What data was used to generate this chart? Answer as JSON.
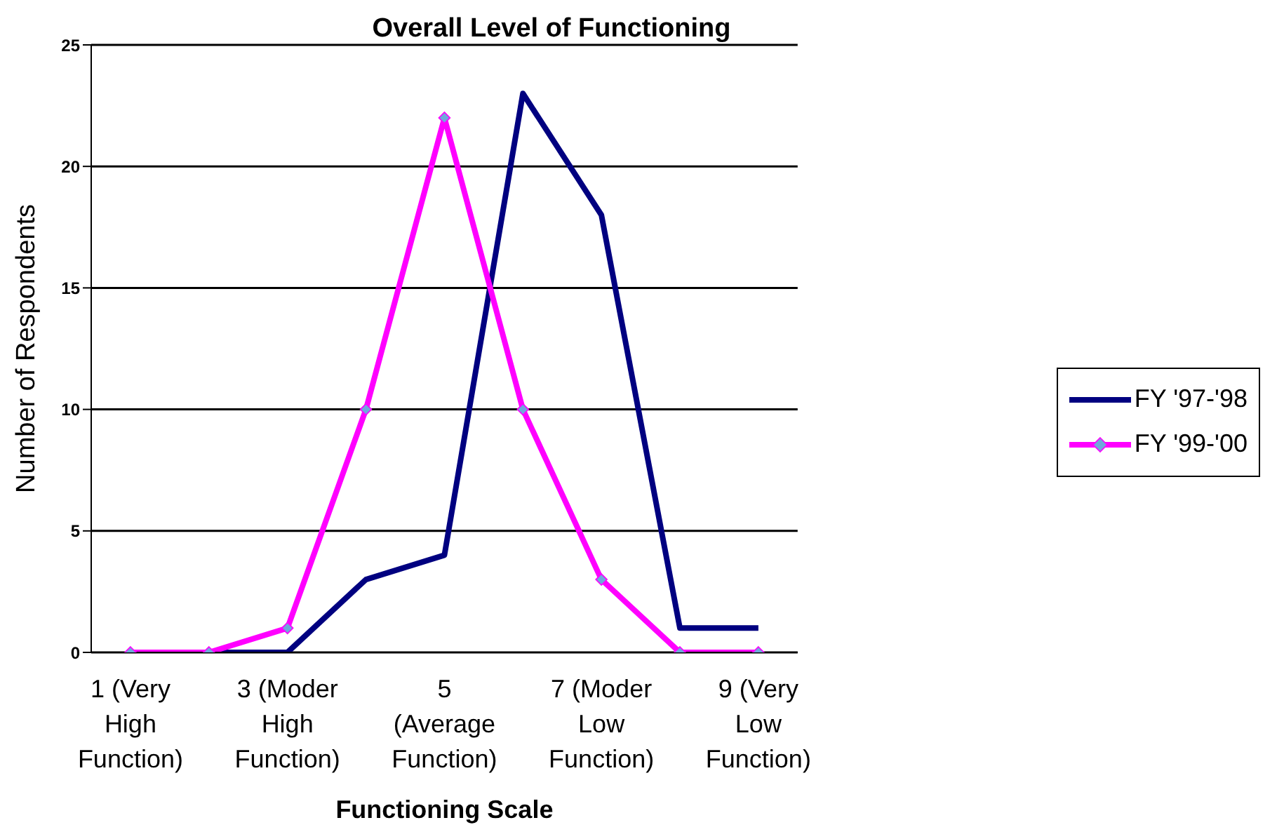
{
  "chart_data": {
    "type": "line",
    "title": "Overall Level of Functioning",
    "xlabel": "Functioning Scale",
    "ylabel": "Number of Respondents",
    "categories": [
      "1 (Very High Function)",
      null,
      "3 (Moder High Function)",
      null,
      "5 (Average Function)",
      null,
      "7 (Moder Low Function)",
      null,
      "9 (Very Low Function)"
    ],
    "series": [
      {
        "name": "FY '97-'98",
        "color": "#000080",
        "marker": "none",
        "values": [
          0,
          0,
          0,
          3,
          4,
          23,
          18,
          1,
          1
        ]
      },
      {
        "name": "FY '99-'00",
        "color": "#ff00ff",
        "marker": "diamond",
        "values": [
          0,
          0,
          1,
          10,
          22,
          10,
          3,
          0,
          0
        ]
      }
    ],
    "ylim": [
      0,
      25
    ],
    "yticks": [
      0,
      5,
      10,
      15,
      20,
      25
    ],
    "grid": "y",
    "legend": "right"
  }
}
